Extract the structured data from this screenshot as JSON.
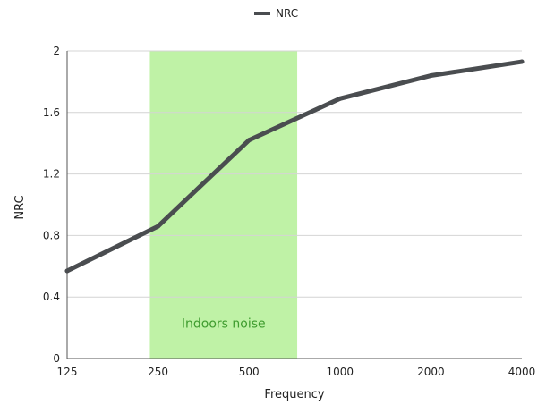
{
  "chart_data": {
    "type": "line",
    "x": [
      "125",
      "250",
      "500",
      "1000",
      "2000",
      "4000"
    ],
    "series": [
      {
        "name": "NRC",
        "values": [
          0.57,
          0.86,
          1.42,
          1.69,
          1.84,
          1.93
        ],
        "color": "#4a4d50"
      }
    ],
    "xlabel": "Frequency",
    "ylabel": "NRC",
    "ylim": [
      0,
      2
    ],
    "yticks": [
      "0",
      "0.4",
      "0.8",
      "1.2",
      "1.6",
      "2"
    ],
    "grid": true,
    "legend": {
      "position": "top-center"
    },
    "highlight": {
      "label": "Indoors noise",
      "from": 0.91,
      "to": 2.53,
      "fill_color": "#bff2a6",
      "label_color": "#3f9c2f"
    }
  }
}
